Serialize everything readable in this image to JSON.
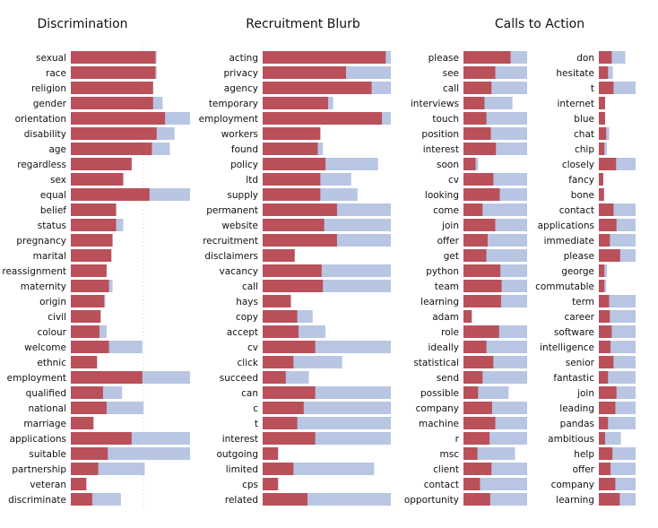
{
  "colors": {
    "primary": "#b9505a",
    "secondary": "#b8c6e3"
  },
  "chart_data": [
    {
      "type": "bar",
      "orientation": "horizontal",
      "stacked_overlay": true,
      "title": "Discrimination",
      "xlim": [
        0,
        1
      ],
      "categories": [
        "sexual",
        "race",
        "religion",
        "gender",
        "orientation",
        "disability",
        "age",
        "regardless",
        "sex",
        "equal",
        "belief",
        "status",
        "pregnancy",
        "marital",
        "reassignment",
        "maternity",
        "origin",
        "civil",
        "colour",
        "welcome",
        "ethnic",
        "employment",
        "qualified",
        "national",
        "marriage",
        "applications",
        "suitable",
        "partnership",
        "veteran",
        "discriminate"
      ],
      "series": [
        {
          "values": [
            0.71,
            0.71,
            0.69,
            0.69,
            0.79,
            0.72,
            0.68,
            0.51,
            0.44,
            0.66,
            0.38,
            0.38,
            0.35,
            0.34,
            0.3,
            0.32,
            0.28,
            0.25,
            0.24,
            0.32,
            0.22,
            0.6,
            0.27,
            0.3,
            0.19,
            0.51,
            0.31,
            0.23,
            0.13,
            0.18
          ]
        },
        {
          "values": [
            0.72,
            0.72,
            0.69,
            0.77,
            1.0,
            0.87,
            0.83,
            0.51,
            0.44,
            1.0,
            0.38,
            0.44,
            0.35,
            0.34,
            0.3,
            0.35,
            0.29,
            0.25,
            0.3,
            0.6,
            0.22,
            1.0,
            0.43,
            0.61,
            0.19,
            1.0,
            1.0,
            0.62,
            0.13,
            0.42
          ]
        }
      ]
    },
    {
      "type": "bar",
      "orientation": "horizontal",
      "stacked_overlay": true,
      "title": "Recruitment Blurb",
      "xlim": [
        0,
        1
      ],
      "categories": [
        "acting",
        "privacy",
        "agency",
        "temporary",
        "employment",
        "workers",
        "found",
        "policy",
        "ltd",
        "supply",
        "permanent",
        "website",
        "recruitment",
        "disclaimers",
        "vacancy",
        "call",
        "hays",
        "copy",
        "accept",
        "cv",
        "click",
        "succeed",
        "can",
        "c",
        "t",
        "interest",
        "outgoing",
        "limited",
        "cps",
        "related"
      ],
      "series": [
        {
          "values": [
            0.96,
            0.65,
            0.85,
            0.51,
            0.93,
            0.45,
            0.43,
            0.49,
            0.45,
            0.45,
            0.58,
            0.48,
            0.58,
            0.25,
            0.46,
            0.47,
            0.22,
            0.27,
            0.28,
            0.41,
            0.24,
            0.18,
            0.41,
            0.32,
            0.27,
            0.41,
            0.12,
            0.24,
            0.12,
            0.35
          ]
        },
        {
          "values": [
            1.0,
            1.0,
            1.0,
            0.55,
            1.0,
            0.45,
            0.47,
            0.9,
            0.69,
            0.74,
            1.0,
            1.0,
            1.0,
            0.25,
            1.0,
            1.0,
            0.22,
            0.39,
            0.49,
            1.0,
            0.62,
            0.36,
            1.0,
            1.0,
            1.0,
            1.0,
            0.12,
            0.87,
            0.12,
            1.0
          ]
        }
      ]
    },
    {
      "type": "bar",
      "orientation": "horizontal",
      "stacked_overlay": true,
      "title": "Calls to Action",
      "xlim": [
        0,
        1
      ],
      "categories": [
        "please",
        "see",
        "call",
        "interviews",
        "touch",
        "position",
        "interest",
        "soon",
        "cv",
        "looking",
        "come",
        "join",
        "offer",
        "get",
        "python",
        "team",
        "learning",
        "adam",
        "role",
        "ideally",
        "statistical",
        "send",
        "possible",
        "company",
        "machine",
        "r",
        "msc",
        "client",
        "contact",
        "opportunity"
      ],
      "series": [
        {
          "values": [
            0.74,
            0.5,
            0.44,
            0.33,
            0.36,
            0.43,
            0.51,
            0.19,
            0.47,
            0.57,
            0.3,
            0.5,
            0.38,
            0.36,
            0.58,
            0.6,
            0.59,
            0.13,
            0.56,
            0.36,
            0.47,
            0.3,
            0.23,
            0.45,
            0.5,
            0.41,
            0.22,
            0.44,
            0.26,
            0.42
          ]
        },
        {
          "values": [
            1.0,
            1.0,
            1.0,
            0.77,
            1.0,
            1.0,
            1.0,
            0.23,
            1.0,
            1.0,
            1.0,
            1.0,
            1.0,
            1.0,
            1.0,
            1.0,
            1.0,
            0.13,
            1.0,
            1.0,
            1.0,
            1.0,
            0.71,
            1.0,
            1.0,
            1.0,
            0.81,
            1.0,
            1.0,
            1.0
          ]
        }
      ]
    },
    {
      "type": "bar",
      "orientation": "horizontal",
      "stacked_overlay": true,
      "title": "",
      "xlim": [
        0,
        1
      ],
      "categories": [
        "don",
        "hesitate",
        "t",
        "internet",
        "blue",
        "chat",
        "chip",
        "closely",
        "fancy",
        "bone",
        "contact",
        "applications",
        "immediate",
        "please",
        "george",
        "commutable",
        "term",
        "career",
        "software",
        "intelligence",
        "senior",
        "fantastic",
        "join",
        "leading",
        "pandas",
        "ambitious",
        "help",
        "offer",
        "company",
        "learning"
      ],
      "series": [
        {
          "values": [
            0.35,
            0.25,
            0.4,
            0.17,
            0.17,
            0.2,
            0.15,
            0.47,
            0.12,
            0.14,
            0.4,
            0.48,
            0.3,
            0.58,
            0.15,
            0.15,
            0.28,
            0.3,
            0.35,
            0.32,
            0.4,
            0.25,
            0.48,
            0.45,
            0.25,
            0.17,
            0.37,
            0.32,
            0.45,
            0.57
          ]
        },
        {
          "values": [
            0.72,
            0.38,
            1.0,
            0.17,
            0.17,
            0.28,
            0.22,
            1.0,
            0.12,
            0.14,
            1.0,
            1.0,
            1.0,
            1.0,
            0.22,
            0.2,
            1.0,
            1.0,
            1.0,
            1.0,
            1.0,
            1.0,
            1.0,
            1.0,
            1.0,
            0.6,
            1.0,
            1.0,
            1.0,
            1.0
          ]
        }
      ]
    }
  ]
}
